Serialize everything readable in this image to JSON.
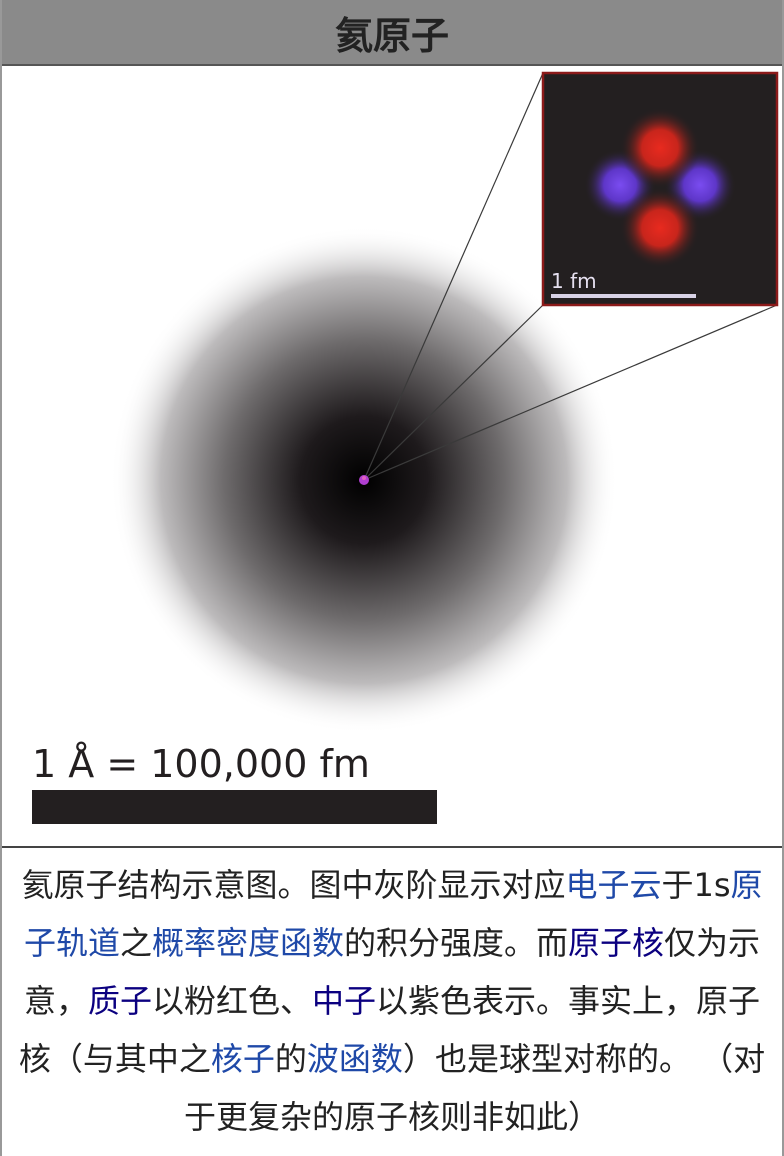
{
  "infobox": {
    "title": "氦原子"
  },
  "figure": {
    "scale_label": "1 Å = 100,000 fm",
    "inset_scale_label": "1 fm"
  },
  "caption": {
    "t1": "氦原子结构示意图。图中灰阶显示对应",
    "l1": "电子云",
    "t2": "于1s",
    "l2": "原子轨道",
    "t3": "之",
    "l3": "概率密度函数",
    "t4": "的积分强度。而",
    "l4": "原子核",
    "t5": "仅为示意，",
    "l5": "质子",
    "t6": "以粉红色、",
    "l6": "中子",
    "t7": "以紫色表示。事实上，原子核（与其中之",
    "l7": "核子",
    "t8": "的",
    "l8": "波函数",
    "t9": "）也是球型对称的。 （对于更复杂的原子核则非如此）"
  },
  "colors": {
    "link": "#1f49a8",
    "visited_link": "#0b0080",
    "proton": "#d8261d",
    "neutron": "#6b3fe0",
    "inset_border": "#8b1a1a"
  }
}
